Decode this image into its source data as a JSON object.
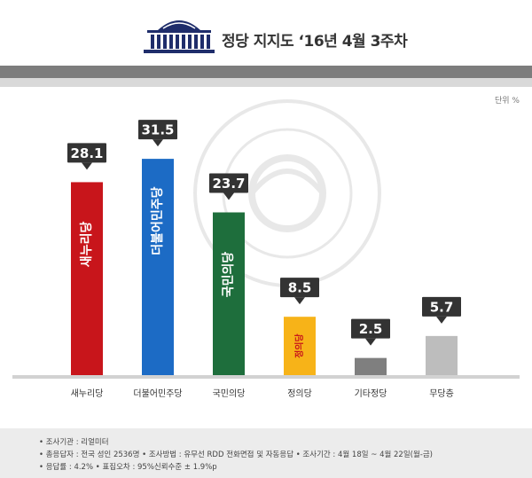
{
  "header": {
    "title": "정당 지지도 ‘16년 4월 3주차"
  },
  "unit_label": "단위 %",
  "chart_data": {
    "type": "bar",
    "title": "정당 지지도 ‘16년 4월 3주차",
    "categories": [
      "새누리당",
      "더불어민주당",
      "국민의당",
      "정의당",
      "기타정당",
      "무당층"
    ],
    "values": [
      28.1,
      31.5,
      23.7,
      8.5,
      2.5,
      5.7
    ],
    "value_labels": [
      "28.1",
      "31.5",
      "23.7",
      "8.5",
      "2.5",
      "5.7"
    ],
    "bar_colors": [
      "#c8151b",
      "#1c6bc5",
      "#1e6e3c",
      "#f7b318",
      "#7f7f7f",
      "#bdbdbd"
    ],
    "bar_logos": [
      "새누리당",
      "더불어민주당",
      "국민의당",
      "정의당",
      "",
      ""
    ],
    "logo_colors": [
      "#ffffff",
      "#ffffff",
      "#ffffff",
      "#c8151b",
      "",
      ""
    ],
    "ylim": [
      0,
      35
    ],
    "xlabel": "",
    "ylabel": "",
    "grid": false,
    "legend": "none"
  },
  "footer": {
    "line1": "• 조사기관 : 리얼미터",
    "line2": "• 총응답자 : 전국 성인 2536명  • 조사방법 : 유무선 RDD 전화면접 및 자동응답  • 조사기간 : 4월 18일 ~ 4월 22일(월-금)",
    "line3": "• 응답률 : 4.2%   • 표집오차 : 95%신뢰수준 ± 1.9%p"
  }
}
